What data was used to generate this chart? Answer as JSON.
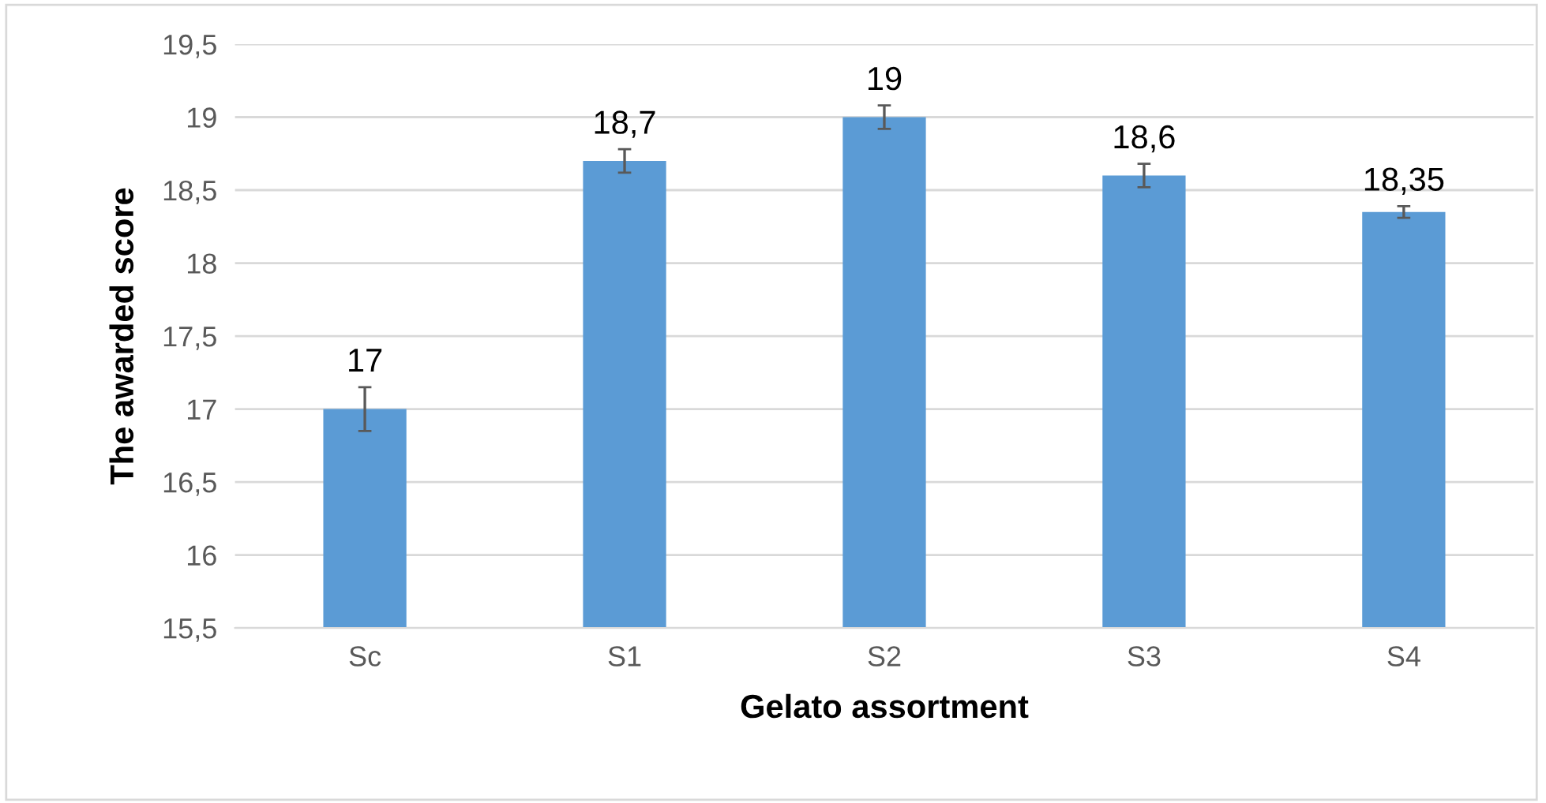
{
  "chart_data": {
    "type": "bar",
    "xlabel": "Gelato assortment",
    "ylabel": "The awarded score",
    "categories": [
      "Sc",
      "S1",
      "S2",
      "S3",
      "S4"
    ],
    "values": [
      17,
      18.7,
      19,
      18.6,
      18.35
    ],
    "errors": [
      0.15,
      0.08,
      0.08,
      0.08,
      0.04
    ],
    "value_labels": [
      "17",
      "18,7",
      "19",
      "18,6",
      "18,35"
    ],
    "color": "#5b9bd5",
    "ylim": [
      15.5,
      19.5
    ],
    "yticks": [
      {
        "value": 15.5,
        "label": "15,5"
      },
      16,
      {
        "value": 16.5,
        "label": "16,5"
      },
      17,
      {
        "value": 17.5,
        "label": "17,5"
      },
      18,
      {
        "value": 18.5,
        "label": "18,5"
      },
      19,
      {
        "value": 19.5,
        "label": "19,5"
      }
    ],
    "grid": "y",
    "legend": false
  }
}
